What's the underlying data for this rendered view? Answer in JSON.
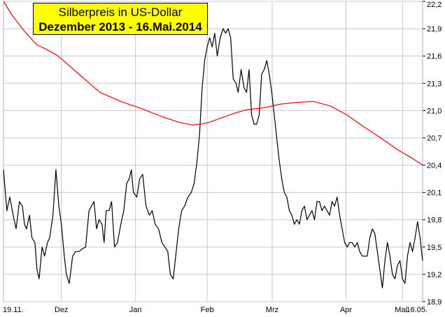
{
  "colors": {
    "background": "#ffffff",
    "grid": "#c8c8c8",
    "price_line": "#000000",
    "ma_line": "#ff0000",
    "title_bg": "#ffff00"
  },
  "chart_data": {
    "type": "line",
    "title": "Silberpreis in US-Dollar",
    "subtitle": "Dezember 2013 - 16.Mai.2014",
    "ylim": [
      18.9,
      22.2
    ],
    "grid": true,
    "y_axis_side": "right",
    "y_ticks": [
      "22,2",
      "21,9",
      "21,6",
      "21,3",
      "21,0",
      "20,7",
      "20,4",
      "20,1",
      "19,8",
      "19,5",
      "19,2",
      "18,9"
    ],
    "x_ticks": [
      {
        "label": "19.11.",
        "t": 0
      },
      {
        "label": "Dez",
        "t": 0.138
      },
      {
        "label": "Jan",
        "t": 0.315
      },
      {
        "label": "Feb",
        "t": 0.486
      },
      {
        "label": "Mrz",
        "t": 0.641
      },
      {
        "label": "Apr",
        "t": 0.817
      },
      {
        "label": "Mai",
        "t": 0.952
      },
      {
        "label": "16.05.",
        "t": 1.0
      }
    ],
    "series": [
      {
        "key": "price",
        "color": "#000000",
        "points": [
          [
            0.0,
            20.35
          ],
          [
            0.008,
            19.9
          ],
          [
            0.015,
            20.05
          ],
          [
            0.023,
            19.85
          ],
          [
            0.03,
            19.7
          ],
          [
            0.038,
            20.0
          ],
          [
            0.045,
            19.95
          ],
          [
            0.05,
            19.75
          ],
          [
            0.055,
            19.7
          ],
          [
            0.062,
            19.85
          ],
          [
            0.068,
            19.6
          ],
          [
            0.075,
            19.55
          ],
          [
            0.08,
            19.25
          ],
          [
            0.085,
            19.15
          ],
          [
            0.092,
            19.5
          ],
          [
            0.098,
            19.4
          ],
          [
            0.105,
            19.55
          ],
          [
            0.11,
            19.6
          ],
          [
            0.118,
            19.85
          ],
          [
            0.125,
            20.35
          ],
          [
            0.132,
            19.95
          ],
          [
            0.138,
            19.75
          ],
          [
            0.145,
            19.4
          ],
          [
            0.15,
            19.2
          ],
          [
            0.157,
            19.1
          ],
          [
            0.165,
            19.4
          ],
          [
            0.172,
            19.45
          ],
          [
            0.18,
            19.45
          ],
          [
            0.188,
            19.48
          ],
          [
            0.196,
            19.5
          ],
          [
            0.204,
            19.9
          ],
          [
            0.21,
            19.95
          ],
          [
            0.216,
            20.0
          ],
          [
            0.222,
            19.7
          ],
          [
            0.228,
            19.8
          ],
          [
            0.235,
            19.75
          ],
          [
            0.24,
            19.55
          ],
          [
            0.245,
            19.9
          ],
          [
            0.252,
            19.9
          ],
          [
            0.258,
            20.0
          ],
          [
            0.265,
            19.5
          ],
          [
            0.272,
            19.55
          ],
          [
            0.28,
            19.75
          ],
          [
            0.287,
            19.9
          ],
          [
            0.294,
            20.2
          ],
          [
            0.3,
            20.25
          ],
          [
            0.305,
            20.35
          ],
          [
            0.31,
            20.1
          ],
          [
            0.318,
            20.05
          ],
          [
            0.325,
            20.25
          ],
          [
            0.332,
            20.3
          ],
          [
            0.34,
            19.95
          ],
          [
            0.348,
            19.85
          ],
          [
            0.355,
            19.9
          ],
          [
            0.362,
            19.75
          ],
          [
            0.37,
            19.7
          ],
          [
            0.378,
            19.55
          ],
          [
            0.385,
            19.5
          ],
          [
            0.392,
            19.45
          ],
          [
            0.398,
            19.2
          ],
          [
            0.405,
            19.15
          ],
          [
            0.412,
            19.45
          ],
          [
            0.418,
            19.7
          ],
          [
            0.425,
            19.9
          ],
          [
            0.432,
            19.95
          ],
          [
            0.44,
            20.05
          ],
          [
            0.448,
            20.1
          ],
          [
            0.455,
            20.2
          ],
          [
            0.462,
            20.45
          ],
          [
            0.468,
            20.75
          ],
          [
            0.474,
            21.25
          ],
          [
            0.48,
            21.55
          ],
          [
            0.486,
            21.7
          ],
          [
            0.492,
            21.8
          ],
          [
            0.498,
            21.7
          ],
          [
            0.504,
            21.85
          ],
          [
            0.51,
            21.6
          ],
          [
            0.517,
            21.8
          ],
          [
            0.524,
            21.9
          ],
          [
            0.53,
            21.85
          ],
          [
            0.536,
            21.9
          ],
          [
            0.542,
            21.8
          ],
          [
            0.548,
            21.35
          ],
          [
            0.555,
            21.3
          ],
          [
            0.56,
            21.2
          ],
          [
            0.567,
            21.45
          ],
          [
            0.574,
            21.25
          ],
          [
            0.58,
            21.2
          ],
          [
            0.586,
            21.45
          ],
          [
            0.592,
            20.95
          ],
          [
            0.598,
            20.85
          ],
          [
            0.604,
            20.85
          ],
          [
            0.61,
            20.95
          ],
          [
            0.616,
            21.4
          ],
          [
            0.622,
            21.45
          ],
          [
            0.628,
            21.55
          ],
          [
            0.634,
            21.4
          ],
          [
            0.64,
            21.2
          ],
          [
            0.646,
            20.95
          ],
          [
            0.652,
            20.7
          ],
          [
            0.658,
            20.45
          ],
          [
            0.664,
            20.25
          ],
          [
            0.67,
            20.1
          ],
          [
            0.676,
            20.05
          ],
          [
            0.682,
            19.9
          ],
          [
            0.688,
            19.85
          ],
          [
            0.694,
            19.75
          ],
          [
            0.7,
            19.8
          ],
          [
            0.706,
            19.75
          ],
          [
            0.712,
            19.9
          ],
          [
            0.718,
            19.95
          ],
          [
            0.724,
            19.8
          ],
          [
            0.73,
            19.85
          ],
          [
            0.736,
            19.9
          ],
          [
            0.742,
            19.8
          ],
          [
            0.748,
            20.0
          ],
          [
            0.754,
            20.0
          ],
          [
            0.76,
            19.9
          ],
          [
            0.766,
            19.95
          ],
          [
            0.772,
            19.9
          ],
          [
            0.778,
            19.85
          ],
          [
            0.784,
            20.0
          ],
          [
            0.79,
            19.95
          ],
          [
            0.796,
            20.05
          ],
          [
            0.802,
            19.85
          ],
          [
            0.808,
            19.7
          ],
          [
            0.814,
            19.55
          ],
          [
            0.82,
            19.5
          ],
          [
            0.826,
            19.55
          ],
          [
            0.832,
            19.55
          ],
          [
            0.838,
            19.5
          ],
          [
            0.844,
            19.55
          ],
          [
            0.85,
            19.45
          ],
          [
            0.856,
            19.4
          ],
          [
            0.862,
            19.4
          ],
          [
            0.868,
            19.4
          ],
          [
            0.874,
            19.6
          ],
          [
            0.88,
            19.7
          ],
          [
            0.886,
            19.65
          ],
          [
            0.892,
            19.45
          ],
          [
            0.898,
            19.25
          ],
          [
            0.904,
            19.05
          ],
          [
            0.91,
            19.35
          ],
          [
            0.916,
            19.55
          ],
          [
            0.922,
            19.4
          ],
          [
            0.928,
            19.2
          ],
          [
            0.934,
            19.15
          ],
          [
            0.94,
            19.3
          ],
          [
            0.946,
            19.35
          ],
          [
            0.952,
            19.15
          ],
          [
            0.958,
            19.1
          ],
          [
            0.964,
            19.4
          ],
          [
            0.97,
            19.55
          ],
          [
            0.976,
            19.45
          ],
          [
            0.982,
            19.6
          ],
          [
            0.988,
            19.78
          ],
          [
            0.994,
            19.6
          ],
          [
            1.0,
            19.35
          ]
        ]
      },
      {
        "key": "ma",
        "color": "#ff0000",
        "points": [
          [
            0.0,
            22.2
          ],
          [
            0.02,
            22.05
          ],
          [
            0.05,
            21.87
          ],
          [
            0.08,
            21.72
          ],
          [
            0.1,
            21.68
          ],
          [
            0.13,
            21.6
          ],
          [
            0.16,
            21.48
          ],
          [
            0.19,
            21.36
          ],
          [
            0.23,
            21.2
          ],
          [
            0.28,
            21.1
          ],
          [
            0.33,
            21.02
          ],
          [
            0.38,
            20.93
          ],
          [
            0.42,
            20.87
          ],
          [
            0.45,
            20.84
          ],
          [
            0.47,
            20.85
          ],
          [
            0.49,
            20.87
          ],
          [
            0.52,
            20.92
          ],
          [
            0.55,
            20.97
          ],
          [
            0.58,
            21.01
          ],
          [
            0.62,
            21.03
          ],
          [
            0.66,
            21.07
          ],
          [
            0.7,
            21.09
          ],
          [
            0.74,
            21.1
          ],
          [
            0.78,
            21.05
          ],
          [
            0.82,
            20.95
          ],
          [
            0.86,
            20.82
          ],
          [
            0.9,
            20.7
          ],
          [
            0.94,
            20.57
          ],
          [
            0.97,
            20.49
          ],
          [
            1.0,
            20.4
          ]
        ]
      }
    ]
  }
}
